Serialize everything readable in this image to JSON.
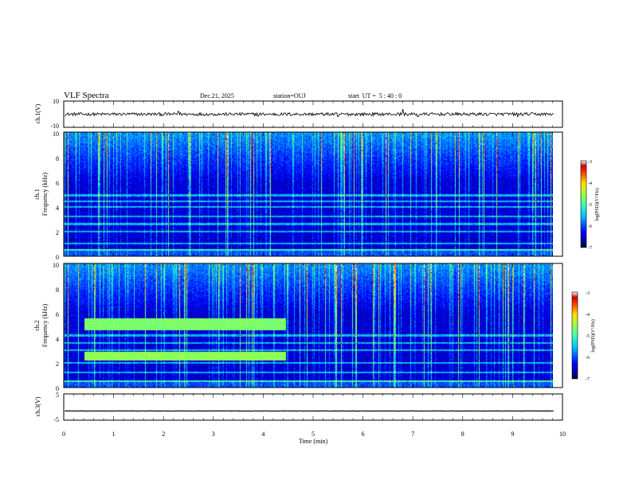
{
  "chart_data": {
    "type": "heatmap",
    "title": "VLF Spectra",
    "date": "Dec.21, 2025",
    "station": "station=OUJ",
    "start_ut": "start  UT =  5 : 40 : 0",
    "x_axis": {
      "label": "Time  (min)",
      "range": [
        0,
        10
      ],
      "ticks": [
        "0",
        "1",
        "2",
        "3",
        "4",
        "5",
        "6",
        "7",
        "8",
        "9",
        "10"
      ]
    },
    "panels": [
      {
        "name": "ch.1(V)",
        "type": "line",
        "ylabel": "ch.1(V)",
        "ylim": [
          -10,
          10
        ],
        "yticks": [
          "10",
          "-10"
        ],
        "baseline": 0,
        "noise_amplitude": 1.2,
        "spikes": [
          {
            "t": 2.3,
            "v": 2.2
          },
          {
            "t": 3.9,
            "v": -1.4
          },
          {
            "t": 4.3,
            "v": -1.0
          },
          {
            "t": 5.5,
            "v": -1.8
          },
          {
            "t": 6.8,
            "v": 4.0
          },
          {
            "t": 7.1,
            "v": -1.9
          },
          {
            "t": 9.1,
            "v": -2.2
          }
        ]
      },
      {
        "name": "ch.1",
        "type": "heatmap",
        "ylabel_line1": "ch.1",
        "ylabel_line2": "Frequency  (kHz)",
        "ylim": [
          0,
          10
        ],
        "yticks": [
          "0",
          "2",
          "4",
          "6",
          "8",
          "10"
        ],
        "duration_min": 9.8,
        "colorbar": {
          "label": "log(PSD)(V²/Hz)",
          "range": [
            -7,
            -3
          ],
          "ticks": [
            "-3",
            "-4",
            "-5",
            "-6",
            "-7"
          ]
        },
        "bright_lines_khz": [
          0.5,
          1.0,
          2.0,
          2.6,
          3.2,
          4.0,
          4.4,
          4.9
        ],
        "bands": []
      },
      {
        "name": "ch.2",
        "type": "heatmap",
        "ylabel_line1": "ch.2",
        "ylabel_line2": "Frequency  (kHz)",
        "ylim": [
          0,
          10
        ],
        "yticks": [
          "0",
          "2",
          "4",
          "6",
          "8",
          "10"
        ],
        "duration_min": 9.8,
        "colorbar": {
          "label": "log(PSD)(V²/Hz)",
          "range": [
            -7,
            -3
          ],
          "ticks": [
            "-3",
            "-4",
            "-5",
            "-6",
            "-7"
          ]
        },
        "bright_lines_khz": [
          0.5,
          1.2,
          2.0,
          3.0,
          3.6,
          4.2
        ],
        "bands": [
          {
            "t_start": 0.4,
            "t_end": 4.45,
            "f_low": 4.6,
            "f_high": 5.6,
            "level": -4.7
          },
          {
            "t_start": 0.4,
            "t_end": 4.45,
            "f_low": 2.2,
            "f_high": 2.9,
            "level": -4.6
          }
        ]
      },
      {
        "name": "ch.3(V)",
        "type": "line",
        "ylabel": "ch.3(V)",
        "ylim": [
          -5,
          5
        ],
        "yticks": [
          "5",
          "-5"
        ],
        "baseline": -1.5,
        "noise_amplitude": 0.05,
        "spikes": []
      }
    ]
  }
}
